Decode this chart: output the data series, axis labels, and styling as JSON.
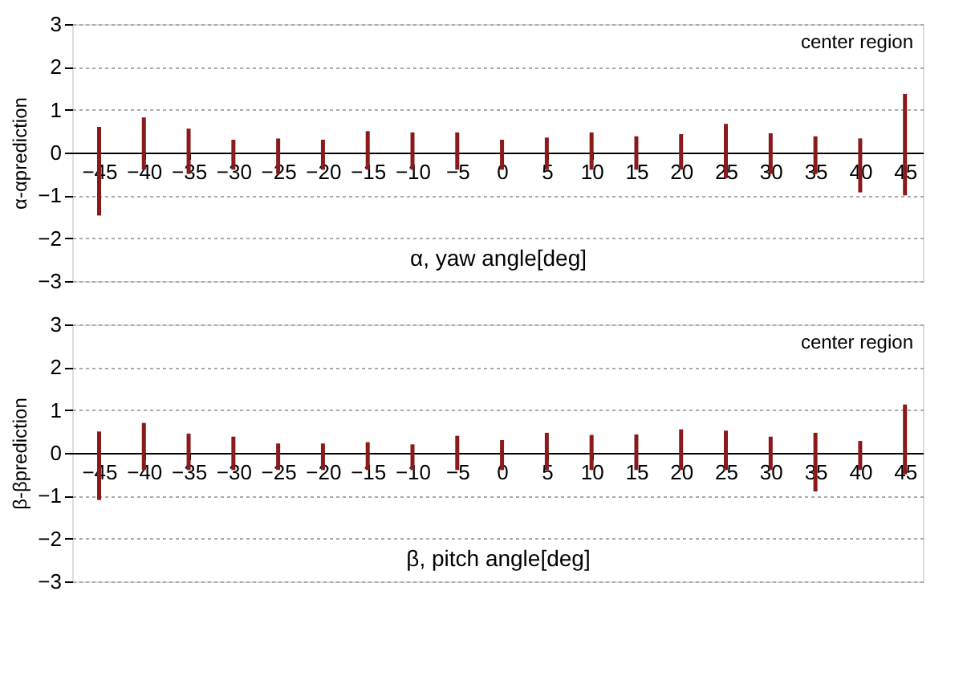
{
  "chart_data": [
    {
      "type": "bar",
      "xlabel": "α, yaw angle[deg]",
      "ylabel": "α-αprediction",
      "annotations": [
        "center region"
      ],
      "x": [
        -45,
        -40,
        -35,
        -30,
        -25,
        -20,
        -15,
        -10,
        -5,
        0,
        5,
        10,
        15,
        20,
        25,
        30,
        35,
        40,
        45
      ],
      "base": [
        -1.47,
        -0.4,
        -0.5,
        -0.4,
        -0.5,
        -0.4,
        -0.4,
        -0.4,
        -0.4,
        -0.4,
        -0.4,
        -0.4,
        -0.4,
        -0.4,
        -0.6,
        -0.5,
        -0.5,
        -0.93,
        -1.0
      ],
      "values": [
        2.07,
        1.22,
        1.06,
        0.7,
        0.83,
        0.7,
        0.9,
        0.87,
        0.87,
        0.7,
        0.75,
        0.87,
        0.78,
        0.83,
        1.27,
        0.95,
        0.88,
        1.26,
        2.37
      ],
      "color": "#8b1a1a",
      "xlim": [
        -48,
        47
      ],
      "xticks": [
        -45,
        -40,
        -35,
        -30,
        -25,
        -20,
        -15,
        -10,
        -5,
        0,
        5,
        10,
        15,
        20,
        25,
        30,
        35,
        40,
        45
      ],
      "ylim": [
        -3,
        3
      ],
      "yticks": [
        -3,
        -2,
        -1,
        0,
        1,
        2,
        3
      ],
      "grid": "y"
    },
    {
      "type": "bar",
      "xlabel": "β, pitch angle[deg]",
      "ylabel": "β-βprediction",
      "annotations": [
        "center region"
      ],
      "x": [
        -45,
        -40,
        -35,
        -30,
        -25,
        -20,
        -15,
        -10,
        -5,
        0,
        5,
        10,
        15,
        20,
        25,
        30,
        35,
        40,
        45
      ],
      "base": [
        -1.1,
        -0.4,
        -0.4,
        -0.4,
        -0.4,
        -0.4,
        -0.4,
        -0.4,
        -0.4,
        -0.4,
        -0.4,
        -0.4,
        -0.4,
        -0.4,
        -0.4,
        -0.4,
        -0.9,
        -0.4,
        -0.5
      ],
      "values": [
        1.6,
        1.1,
        0.85,
        0.78,
        0.62,
        0.62,
        0.65,
        0.6,
        0.8,
        0.7,
        0.87,
        0.82,
        0.83,
        0.95,
        0.92,
        0.78,
        1.37,
        0.68,
        1.63
      ],
      "color": "#8b1a1a",
      "xlim": [
        -48,
        47
      ],
      "xticks": [
        -45,
        -40,
        -35,
        -30,
        -25,
        -20,
        -15,
        -10,
        -5,
        0,
        5,
        10,
        15,
        20,
        25,
        30,
        35,
        40,
        45
      ],
      "ylim": [
        -3,
        3
      ],
      "yticks": [
        -3,
        -2,
        -1,
        0,
        1,
        2,
        3
      ],
      "grid": "y"
    }
  ]
}
